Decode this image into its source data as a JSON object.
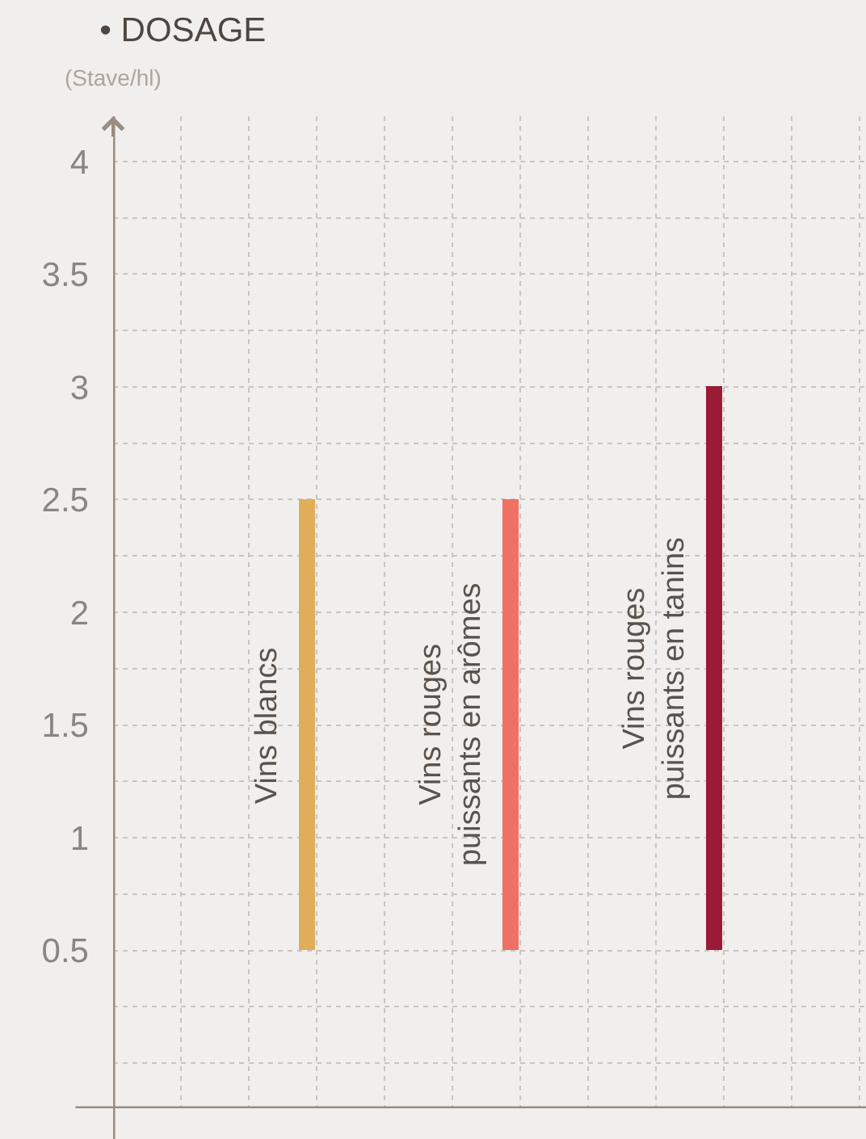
{
  "chart_data": {
    "type": "bar",
    "title": "• DOSAGE",
    "ylabel": "(Stave/hl)",
    "categories": [
      "Vins blancs",
      "Vins rouges\npuissants en arômes",
      "Vins rouges\npuissants en tanins"
    ],
    "base": [
      0.5,
      0.5,
      0.5
    ],
    "values": [
      2,
      2,
      2.5
    ],
    "colors": [
      "#e0ad5a",
      "#ef7064",
      "#9b1a36"
    ],
    "ylim": [
      -0.2,
      4.2
    ],
    "yticks": [
      {
        "value": 0,
        "label": null
      },
      {
        "value": 0.25,
        "label": null
      },
      0.5,
      {
        "value": 0.75,
        "label": null
      },
      1,
      {
        "value": 1.25,
        "label": null
      },
      1.5,
      {
        "value": 1.75,
        "label": null
      },
      2,
      {
        "value": 2.25,
        "label": null
      },
      2.5,
      {
        "value": 2.75,
        "label": null
      },
      3,
      {
        "value": 3.25,
        "label": null
      },
      3.5,
      {
        "value": 3.75,
        "label": null
      },
      4
    ],
    "grid": true
  }
}
